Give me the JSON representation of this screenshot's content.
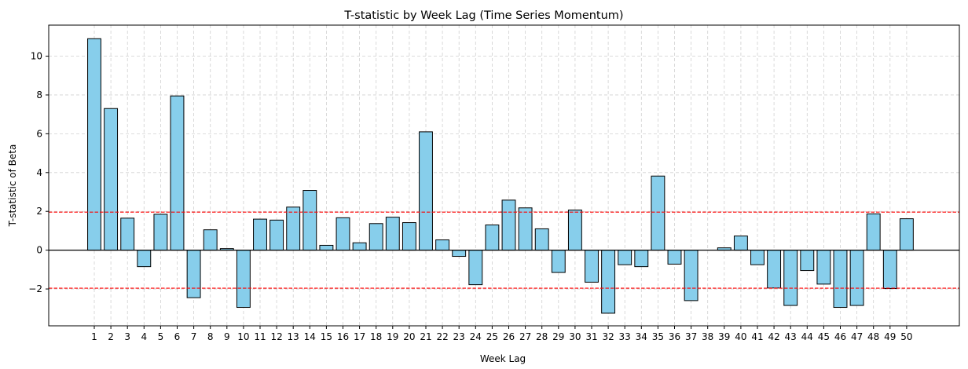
{
  "chart_data": {
    "type": "bar",
    "title": "T-statistic by Week Lag (Time Series Momentum)",
    "xlabel": "Week Lag",
    "ylabel": "T-statistic of Beta",
    "categories": [
      "1",
      "2",
      "3",
      "4",
      "5",
      "6",
      "7",
      "8",
      "9",
      "10",
      "11",
      "12",
      "13",
      "14",
      "15",
      "16",
      "17",
      "18",
      "19",
      "20",
      "21",
      "22",
      "23",
      "24",
      "25",
      "26",
      "27",
      "28",
      "29",
      "30",
      "31",
      "32",
      "33",
      "34",
      "35",
      "36",
      "37",
      "38",
      "39",
      "40",
      "41",
      "42",
      "43",
      "44",
      "45",
      "46",
      "47",
      "48",
      "49",
      "50"
    ],
    "values": [
      10.9,
      7.3,
      1.65,
      -0.85,
      1.85,
      7.95,
      -2.45,
      1.05,
      0.08,
      -2.95,
      1.6,
      1.55,
      2.22,
      3.08,
      0.25,
      1.67,
      0.38,
      1.37,
      1.7,
      1.42,
      6.1,
      0.53,
      -0.32,
      -1.78,
      1.3,
      2.58,
      2.18,
      1.1,
      -1.15,
      2.07,
      -1.65,
      -3.25,
      -0.75,
      -0.85,
      3.82,
      -0.72,
      -2.6,
      0.0,
      0.12,
      0.73,
      -0.75,
      -1.95,
      -2.85,
      -1.05,
      -1.75,
      -2.95,
      -2.85,
      1.87,
      -1.98,
      1.62
    ],
    "yticks": [
      -2,
      0,
      2,
      4,
      6,
      8,
      10
    ],
    "ylim": [
      -3.9,
      11.6
    ],
    "reference_lines": [
      {
        "y": 1.96,
        "color": "#ff0000",
        "style": "dashed"
      },
      {
        "y": -1.96,
        "color": "#ff0000",
        "style": "dashed"
      },
      {
        "y": 0,
        "color": "#000000",
        "style": "solid"
      }
    ],
    "bar_color": "#87ceeb",
    "bar_edge_color": "#000000",
    "grid": true
  }
}
